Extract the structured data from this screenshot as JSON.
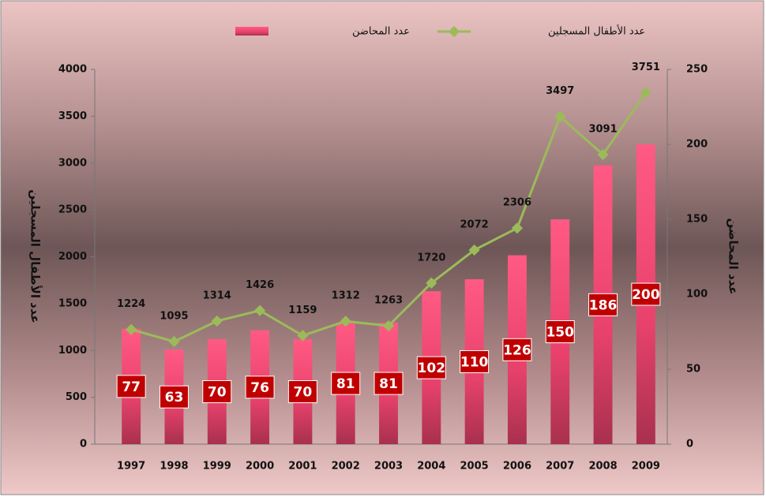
{
  "chart_data": {
    "type": "bar_line",
    "categories": [
      "1997",
      "1998",
      "1999",
      "2000",
      "2001",
      "2002",
      "2003",
      "2004",
      "2005",
      "2006",
      "2007",
      "2008",
      "2009"
    ],
    "series": [
      {
        "name": "عدد المحاضن",
        "type": "bar",
        "axis": "y2",
        "color": "#f0426e",
        "values": [
          77,
          63,
          70,
          76,
          70,
          81,
          81,
          102,
          110,
          126,
          150,
          186,
          200
        ]
      },
      {
        "name": "عدد الأطفال المسجلين",
        "type": "line",
        "axis": "y",
        "color": "#9bbb59",
        "values": [
          1224,
          1095,
          1314,
          1426,
          1159,
          1312,
          1263,
          1720,
          2072,
          2306,
          3497,
          3091,
          3751
        ]
      }
    ],
    "ylabel": "عدد الأطفال المسجلين",
    "y2label": "عدد المحاضن",
    "ylim": [
      0,
      4000
    ],
    "yticks": [
      0,
      500,
      1000,
      1500,
      2000,
      2500,
      3000,
      3500,
      4000
    ],
    "y2lim": [
      0,
      250
    ],
    "y2ticks": [
      0,
      50,
      100,
      150,
      200,
      250
    ],
    "label_color": "#c00000",
    "legend": "top"
  }
}
